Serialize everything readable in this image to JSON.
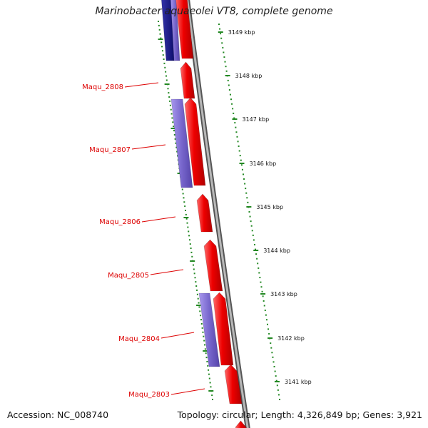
{
  "title": "Marinobacter aquaeolei VT8, complete genome",
  "footer": {
    "accession": "Accession: NC_008740",
    "summary": "Topology: circular; Length: 4,326,849 bp; Genes: 3,921"
  },
  "colors": {
    "forward_gene": "#ee0000",
    "reverse_gene": "#7766cc",
    "reverse_gene_dark": "#11118a",
    "scale_ticks": "#228822",
    "backbone": "#888888",
    "gene_label": "#dd0000"
  },
  "scale_labels": [
    "3149 kbp",
    "3148 kbp",
    "3147 kbp",
    "3146 kbp",
    "3145 kbp",
    "3144 kbp",
    "3143 kbp",
    "3142 kbp",
    "3141 kbp"
  ],
  "gene_labels": [
    "Maqu_2808",
    "Maqu_2807",
    "Maqu_2806",
    "Maqu_2805",
    "Maqu_2804",
    "Maqu_2803"
  ]
}
